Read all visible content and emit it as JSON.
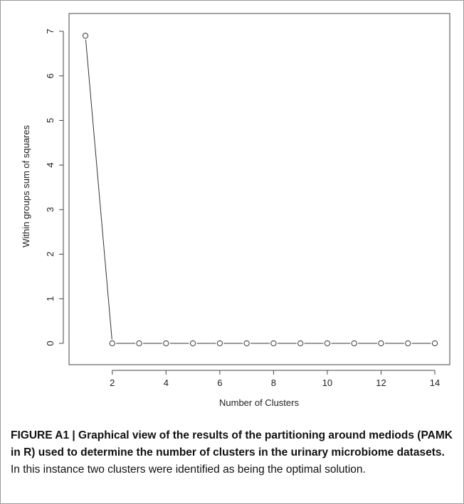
{
  "chart_data": {
    "type": "line",
    "xlabel": "Number of Clusters",
    "ylabel": "Within groups sum of squares",
    "x": [
      1,
      2,
      3,
      4,
      5,
      6,
      7,
      8,
      9,
      10,
      11,
      12,
      13,
      14
    ],
    "values": [
      6.9,
      0,
      0,
      0,
      0,
      0,
      0,
      0,
      0,
      0,
      0,
      0,
      0,
      0
    ],
    "xticks": [
      2,
      4,
      6,
      8,
      10,
      12,
      14
    ],
    "yticks": [
      0,
      1,
      2,
      3,
      4,
      5,
      6,
      7
    ],
    "xlim": [
      0.5,
      14.5
    ],
    "ylim": [
      -0.3,
      7.2
    ],
    "marker": "open-circle",
    "grid": false
  },
  "caption": {
    "bold": "FIGURE A1 | Graphical view of the results of the partitioning around mediods (PAMK in R) used to determine the number of clusters in the urinary microbiome datasets.",
    "text": " In this instance two clusters were identified as being the optimal solution."
  }
}
